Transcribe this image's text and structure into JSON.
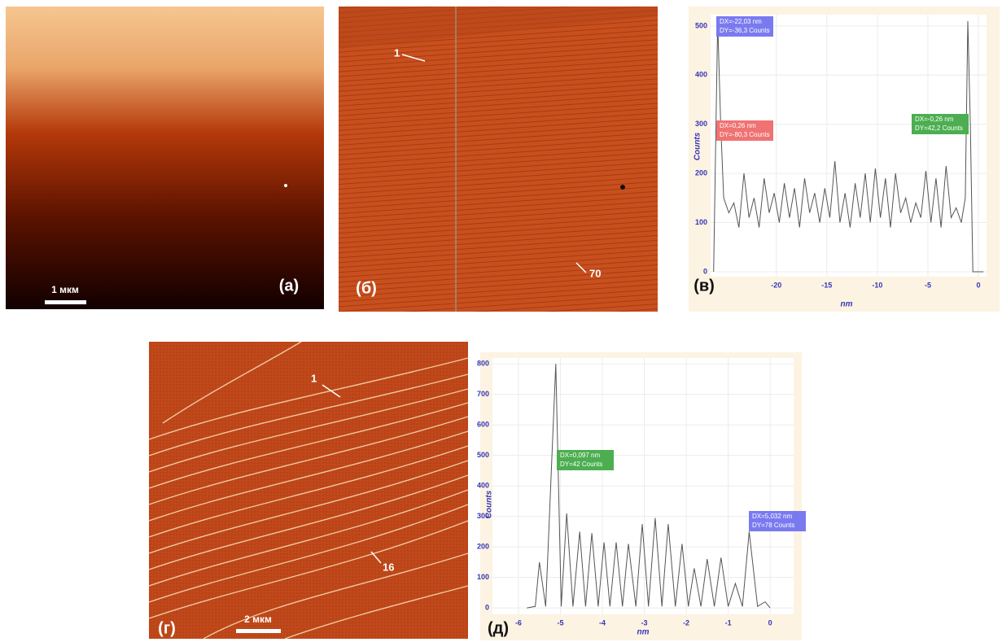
{
  "panels": {
    "a": {
      "label": "(а)",
      "scale": "1 мкм"
    },
    "b": {
      "label": "(б)",
      "arrows": [
        "1",
        "70"
      ]
    },
    "v": {
      "label": "(в)"
    },
    "g": {
      "label": "(г)",
      "scale": "2 мкм",
      "arrows": [
        "1",
        "16"
      ]
    },
    "d": {
      "label": "(д)"
    }
  },
  "chart_data": [
    {
      "type": "line",
      "x_label": "nm",
      "y_label": "Counts",
      "color": "#555555",
      "x": [
        -26.2,
        -25.8,
        -25.5,
        -25.2,
        -24.7,
        -24.2,
        -23.7,
        -23.2,
        -22.7,
        -22.2,
        -21.7,
        -21.2,
        -20.7,
        -20.2,
        -19.7,
        -19.2,
        -18.7,
        -18.2,
        -17.7,
        -17.2,
        -16.7,
        -16.2,
        -15.7,
        -15.2,
        -14.7,
        -14.2,
        -13.7,
        -13.2,
        -12.7,
        -12.2,
        -11.7,
        -11.2,
        -10.7,
        -10.2,
        -9.7,
        -9.2,
        -8.7,
        -8.2,
        -7.7,
        -7.2,
        -6.7,
        -6.2,
        -5.7,
        -5.2,
        -4.7,
        -4.2,
        -3.7,
        -3.2,
        -2.7,
        -2.2,
        -1.7,
        -1.3,
        -1.05,
        -0.8,
        -0.55,
        0.5
      ],
      "values": [
        0,
        510,
        300,
        150,
        120,
        140,
        90,
        200,
        110,
        150,
        90,
        190,
        120,
        160,
        100,
        180,
        110,
        170,
        90,
        190,
        120,
        160,
        100,
        170,
        110,
        225,
        100,
        160,
        90,
        180,
        110,
        200,
        100,
        210,
        110,
        190,
        90,
        200,
        120,
        150,
        100,
        140,
        110,
        205,
        100,
        190,
        90,
        215,
        110,
        130,
        100,
        150,
        510,
        300,
        0,
        0
      ],
      "xlim": [
        -26.5,
        0.8
      ],
      "ylim": [
        -10,
        523
      ],
      "xticks": [
        -20,
        -15,
        -10,
        -5,
        0
      ],
      "yticks": [
        0,
        100,
        200,
        300,
        400,
        500
      ],
      "annotations": [
        {
          "lines": [
            "DX=-22,03 nm",
            "DY=-36,3 Counts"
          ],
          "color": "#7a7af0"
        },
        {
          "lines": [
            "DX=0,26 nm",
            "DY=-80,3 Counts"
          ],
          "color": "#f07272"
        },
        {
          "lines": [
            "DX=-0,26 nm",
            "DY=42,2 Counts"
          ],
          "color": "#4cae50"
        }
      ]
    },
    {
      "type": "line",
      "x_label": "nm",
      "y_label": "Counts",
      "color": "#555555",
      "x": [
        -5.8,
        -5.6,
        -5.5,
        -5.35,
        -5.11,
        -4.98,
        -4.85,
        -4.7,
        -4.54,
        -4.4,
        -4.25,
        -4.1,
        -3.96,
        -3.82,
        -3.67,
        -3.52,
        -3.38,
        -3.2,
        -3.05,
        -2.9,
        -2.74,
        -2.58,
        -2.43,
        -2.26,
        -2.1,
        -1.95,
        -1.81,
        -1.65,
        -1.5,
        -1.33,
        -1.17,
        -1.0,
        -0.83,
        -0.66,
        -0.5,
        -0.3,
        -0.12,
        0
      ],
      "values": [
        0,
        5,
        150,
        5,
        800,
        5,
        310,
        5,
        250,
        5,
        245,
        5,
        215,
        5,
        215,
        5,
        210,
        5,
        275,
        5,
        295,
        5,
        275,
        5,
        210,
        5,
        130,
        5,
        160,
        5,
        165,
        5,
        80,
        5,
        250,
        5,
        20,
        0
      ],
      "xlim": [
        -6.62,
        0.56
      ],
      "ylim": [
        -21,
        819
      ],
      "xticks": [
        -6,
        -5,
        -4,
        -3,
        -2,
        -1,
        0
      ],
      "yticks": [
        0,
        100,
        200,
        300,
        400,
        500,
        600,
        700,
        800
      ],
      "annotations": [
        {
          "lines": [
            "DX=0,097 nm",
            "DY=42 Counts"
          ],
          "color": "#4cae50"
        },
        {
          "lines": [
            "DX=5,032 nm",
            "DY=78 Counts"
          ],
          "color": "#7a7af0"
        }
      ]
    }
  ]
}
